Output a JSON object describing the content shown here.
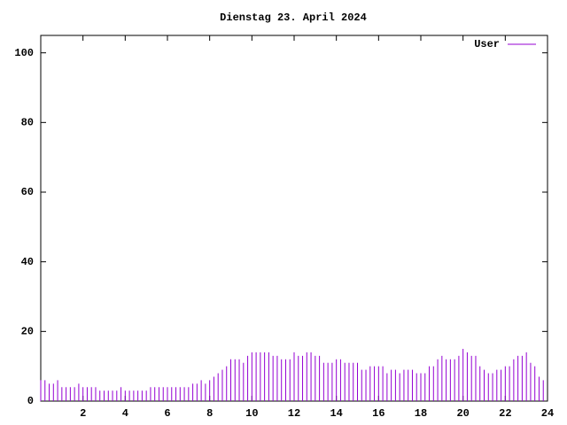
{
  "chart_data": {
    "type": "impulse",
    "title": "Dienstag 23. April 2024",
    "x": [
      0,
      0.2,
      0.4,
      0.6,
      0.8,
      1,
      1.2,
      1.4,
      1.6,
      1.8,
      2,
      2.2,
      2.4,
      2.6,
      2.8,
      3,
      3.2,
      3.4,
      3.6,
      3.8,
      4,
      4.2,
      4.4,
      4.6,
      4.8,
      5,
      5.2,
      5.4,
      5.6,
      5.8,
      6,
      6.2,
      6.4,
      6.6,
      6.8,
      7,
      7.2,
      7.4,
      7.6,
      7.8,
      8,
      8.2,
      8.4,
      8.6,
      8.8,
      9,
      9.2,
      9.4,
      9.6,
      9.8,
      10,
      10.2,
      10.4,
      10.6,
      10.8,
      11,
      11.2,
      11.4,
      11.6,
      11.8,
      12,
      12.2,
      12.4,
      12.6,
      12.8,
      13,
      13.2,
      13.4,
      13.6,
      13.8,
      14,
      14.2,
      14.4,
      14.6,
      14.8,
      15,
      15.2,
      15.4,
      15.6,
      15.8,
      16,
      16.2,
      16.4,
      16.6,
      16.8,
      17,
      17.2,
      17.4,
      17.6,
      17.8,
      18,
      18.2,
      18.4,
      18.6,
      18.8,
      19,
      19.2,
      19.4,
      19.6,
      19.8,
      20,
      20.2,
      20.4,
      20.6,
      20.8,
      21,
      21.2,
      21.4,
      21.6,
      21.8,
      22,
      22.2,
      22.4,
      22.6,
      22.8,
      23,
      23.2,
      23.4,
      23.6,
      23.8
    ],
    "series": [
      {
        "name": "User",
        "color": "#9400d3",
        "values": [
          6,
          6,
          5,
          5,
          6,
          4,
          4,
          4,
          4,
          5,
          4,
          4,
          4,
          4,
          3,
          3,
          3,
          3,
          3,
          4,
          3,
          3,
          3,
          3,
          3,
          3,
          4,
          4,
          4,
          4,
          4,
          4,
          4,
          4,
          4,
          4,
          5,
          5,
          6,
          5,
          6,
          7,
          8,
          9,
          10,
          12,
          12,
          12,
          11,
          13,
          14,
          14,
          14,
          14,
          14,
          13,
          13,
          12,
          12,
          12,
          14,
          13,
          13,
          14,
          14,
          13,
          13,
          11,
          11,
          11,
          12,
          12,
          11,
          11,
          11,
          11,
          9,
          9,
          10,
          10,
          10,
          10,
          8,
          9,
          9,
          8,
          9,
          9,
          9,
          8,
          8,
          8,
          10,
          10,
          12,
          13,
          12,
          12,
          12,
          13,
          15,
          14,
          13,
          13,
          10,
          9,
          8,
          8,
          9,
          9,
          10,
          10,
          12,
          13,
          13,
          14,
          11,
          10,
          7,
          6
        ]
      }
    ],
    "xlim": [
      0,
      24
    ],
    "ylim": [
      0,
      105
    ],
    "xticks": [
      2,
      4,
      6,
      8,
      10,
      12,
      14,
      16,
      18,
      20,
      22,
      24
    ],
    "yticks": [
      0,
      20,
      40,
      60,
      80,
      100
    ],
    "legend": "top-right"
  }
}
